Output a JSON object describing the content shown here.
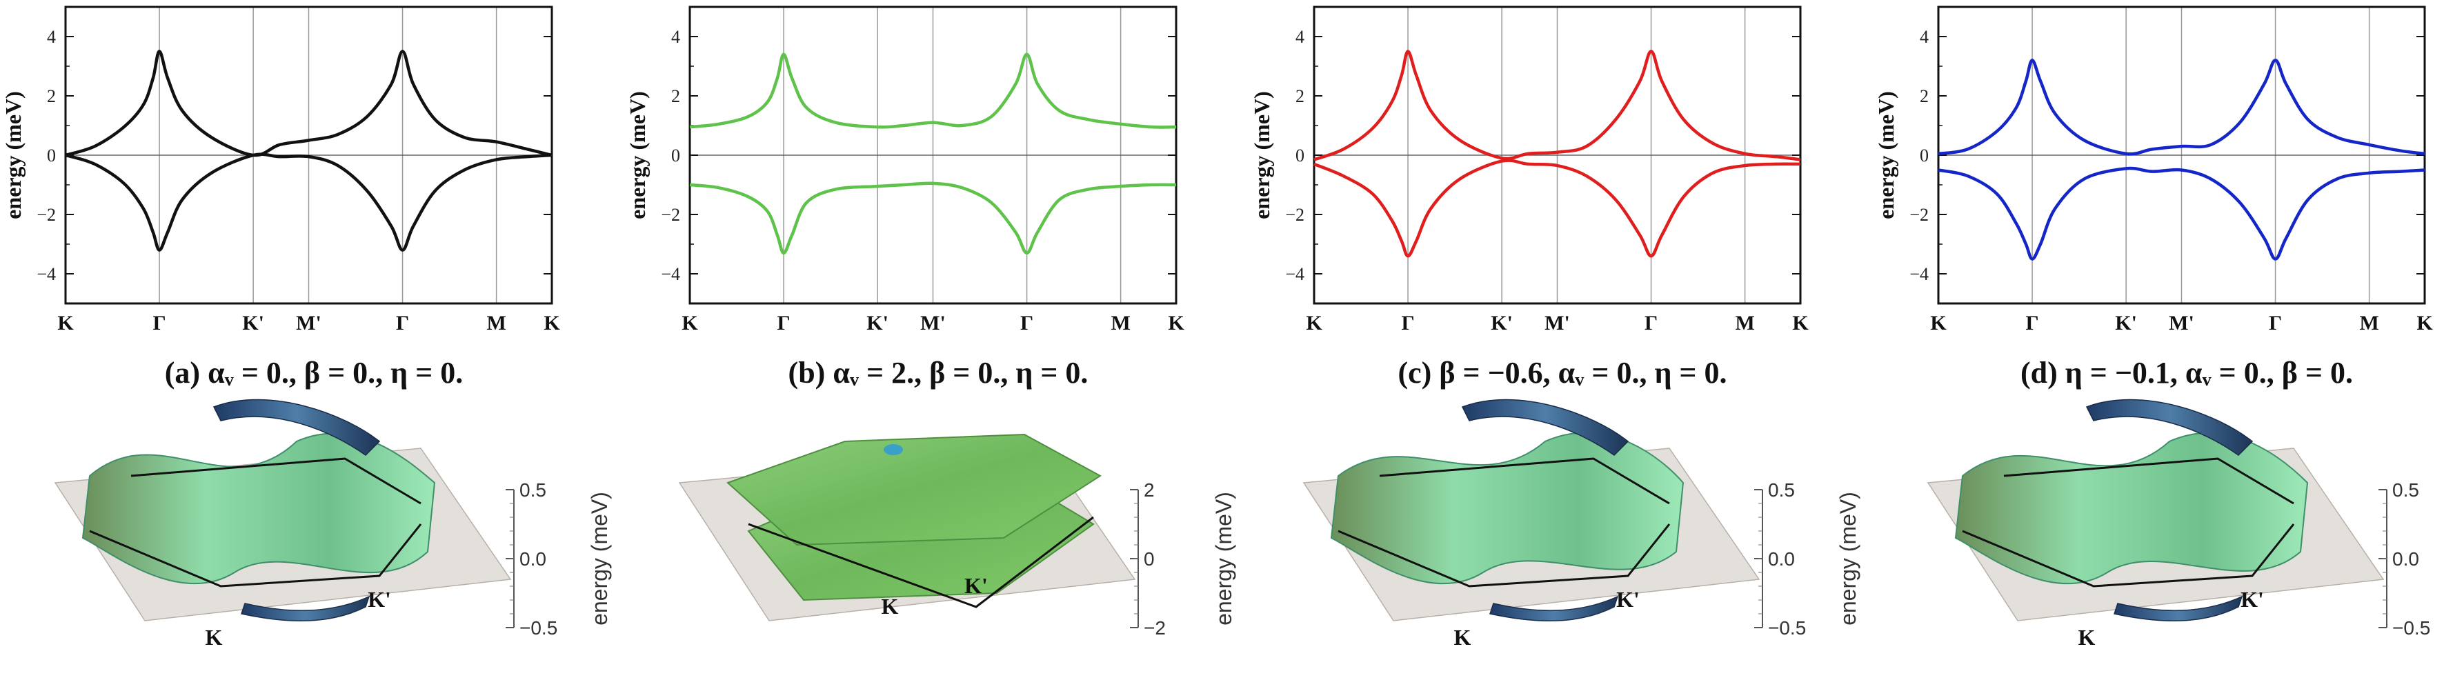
{
  "figure": {
    "ylabel": "energy (meV)",
    "surface_zlabel": "energy (meV)",
    "panels": [
      {
        "caption": "(a) αᵥ = 0., β = 0., η = 0.",
        "color": "#111111",
        "surface_ticks": [
          "0.5",
          "0.0",
          "−0.5"
        ],
        "k_label": "K",
        "kp_label": "K'"
      },
      {
        "caption": "(b) αᵥ = 2., β = 0., η = 0.",
        "color": "#5fc24a",
        "surface_ticks": [
          "2",
          "0",
          "−2"
        ],
        "k_label": "K",
        "kp_label": "K'"
      },
      {
        "caption": "(c) β = −0.6, αᵥ = 0., η = 0.",
        "color": "#e01e1e",
        "surface_ticks": [
          "0.5",
          "0.0",
          "−0.5"
        ],
        "k_label": "K",
        "kp_label": "K'"
      },
      {
        "caption": "(d) η = −0.1, αᵥ = 0., β = 0.",
        "color": "#1526c9",
        "surface_ticks": [
          "0.5",
          "0.0",
          "−0.5"
        ],
        "k_label": "K",
        "kp_label": "K'"
      }
    ]
  },
  "chart_data": [
    {
      "type": "line",
      "title": "(a) αᵥ = 0., β = 0., η = 0.",
      "xlabel": "",
      "ylabel": "energy (meV)",
      "ylim": [
        -5,
        5
      ],
      "yticks": [
        -4,
        -2,
        0,
        2,
        4
      ],
      "xticks": [
        {
          "label": "K",
          "x": 0
        },
        {
          "label": "Γ",
          "x": 0.193
        },
        {
          "label": "K'",
          "x": 0.386
        },
        {
          "label": "M'",
          "x": 0.5
        },
        {
          "label": "Γ",
          "x": 0.693
        },
        {
          "label": "M",
          "x": 0.886
        },
        {
          "label": "K",
          "x": 1
        }
      ],
      "series": [
        {
          "name": "upper",
          "points": [
            [
              0,
              0
            ],
            [
              0.06,
              0.3
            ],
            [
              0.12,
              0.95
            ],
            [
              0.16,
              1.7
            ],
            [
              0.18,
              2.6
            ],
            [
              0.193,
              3.5
            ],
            [
              0.21,
              2.6
            ],
            [
              0.24,
              1.5
            ],
            [
              0.3,
              0.6
            ],
            [
              0.386,
              0
            ],
            [
              0.44,
              0.35
            ],
            [
              0.5,
              0.5
            ],
            [
              0.56,
              0.7
            ],
            [
              0.62,
              1.3
            ],
            [
              0.67,
              2.4
            ],
            [
              0.693,
              3.5
            ],
            [
              0.715,
              2.4
            ],
            [
              0.76,
              1.2
            ],
            [
              0.82,
              0.6
            ],
            [
              0.886,
              0.45
            ],
            [
              0.95,
              0.2
            ],
            [
              1,
              0
            ]
          ]
        },
        {
          "name": "lower",
          "points": [
            [
              0,
              0
            ],
            [
              0.06,
              -0.3
            ],
            [
              0.12,
              -0.95
            ],
            [
              0.16,
              -1.8
            ],
            [
              0.18,
              -2.6
            ],
            [
              0.193,
              -3.2
            ],
            [
              0.21,
              -2.6
            ],
            [
              0.24,
              -1.5
            ],
            [
              0.3,
              -0.6
            ],
            [
              0.386,
              0
            ],
            [
              0.44,
              -0.05
            ],
            [
              0.5,
              -0.05
            ],
            [
              0.56,
              -0.35
            ],
            [
              0.62,
              -1.2
            ],
            [
              0.67,
              -2.4
            ],
            [
              0.693,
              -3.2
            ],
            [
              0.715,
              -2.4
            ],
            [
              0.76,
              -1.2
            ],
            [
              0.82,
              -0.5
            ],
            [
              0.886,
              -0.15
            ],
            [
              0.95,
              -0.05
            ],
            [
              1,
              0
            ]
          ]
        }
      ]
    },
    {
      "type": "line",
      "title": "(b) αᵥ = 2., β = 0., η = 0.",
      "xlabel": "",
      "ylabel": "energy (meV)",
      "ylim": [
        -5,
        5
      ],
      "yticks": [
        -4,
        -2,
        0,
        2,
        4
      ],
      "xticks": [
        {
          "label": "K",
          "x": 0
        },
        {
          "label": "Γ",
          "x": 0.193
        },
        {
          "label": "K'",
          "x": 0.386
        },
        {
          "label": "M'",
          "x": 0.5
        },
        {
          "label": "Γ",
          "x": 0.693
        },
        {
          "label": "M",
          "x": 0.886
        },
        {
          "label": "K",
          "x": 1
        }
      ],
      "series": [
        {
          "name": "upper",
          "points": [
            [
              0,
              0.95
            ],
            [
              0.06,
              1.05
            ],
            [
              0.12,
              1.3
            ],
            [
              0.16,
              1.8
            ],
            [
              0.18,
              2.6
            ],
            [
              0.193,
              3.4
            ],
            [
              0.21,
              2.6
            ],
            [
              0.24,
              1.6
            ],
            [
              0.3,
              1.1
            ],
            [
              0.386,
              0.95
            ],
            [
              0.44,
              1.0
            ],
            [
              0.5,
              1.1
            ],
            [
              0.56,
              1.0
            ],
            [
              0.62,
              1.3
            ],
            [
              0.67,
              2.4
            ],
            [
              0.693,
              3.4
            ],
            [
              0.715,
              2.4
            ],
            [
              0.76,
              1.5
            ],
            [
              0.82,
              1.2
            ],
            [
              0.886,
              1.05
            ],
            [
              0.95,
              0.95
            ],
            [
              1,
              0.95
            ]
          ]
        },
        {
          "name": "lower",
          "points": [
            [
              0,
              -1.0
            ],
            [
              0.06,
              -1.1
            ],
            [
              0.12,
              -1.4
            ],
            [
              0.16,
              -1.9
            ],
            [
              0.18,
              -2.7
            ],
            [
              0.193,
              -3.3
            ],
            [
              0.21,
              -2.7
            ],
            [
              0.24,
              -1.6
            ],
            [
              0.3,
              -1.15
            ],
            [
              0.386,
              -1.05
            ],
            [
              0.44,
              -1.0
            ],
            [
              0.5,
              -0.95
            ],
            [
              0.56,
              -1.1
            ],
            [
              0.62,
              -1.6
            ],
            [
              0.67,
              -2.6
            ],
            [
              0.693,
              -3.3
            ],
            [
              0.715,
              -2.6
            ],
            [
              0.76,
              -1.5
            ],
            [
              0.82,
              -1.15
            ],
            [
              0.886,
              -1.05
            ],
            [
              0.95,
              -1.0
            ],
            [
              1,
              -1.0
            ]
          ]
        }
      ]
    },
    {
      "type": "line",
      "title": "(c) β = −0.6, αᵥ = 0., η = 0.",
      "xlabel": "",
      "ylabel": "energy (meV)",
      "ylim": [
        -5,
        5
      ],
      "yticks": [
        -4,
        -2,
        0,
        2,
        4
      ],
      "xticks": [
        {
          "label": "K",
          "x": 0
        },
        {
          "label": "Γ",
          "x": 0.193
        },
        {
          "label": "K'",
          "x": 0.386
        },
        {
          "label": "M'",
          "x": 0.5
        },
        {
          "label": "Γ",
          "x": 0.693
        },
        {
          "label": "M",
          "x": 0.886
        },
        {
          "label": "K",
          "x": 1
        }
      ],
      "series": [
        {
          "name": "upper",
          "points": [
            [
              0,
              -0.15
            ],
            [
              0.06,
              0.2
            ],
            [
              0.12,
              0.9
            ],
            [
              0.16,
              1.8
            ],
            [
              0.18,
              2.7
            ],
            [
              0.193,
              3.5
            ],
            [
              0.21,
              2.7
            ],
            [
              0.24,
              1.5
            ],
            [
              0.3,
              0.5
            ],
            [
              0.386,
              -0.1
            ],
            [
              0.44,
              0.05
            ],
            [
              0.5,
              0.1
            ],
            [
              0.56,
              0.3
            ],
            [
              0.62,
              1.2
            ],
            [
              0.67,
              2.5
            ],
            [
              0.693,
              3.5
            ],
            [
              0.715,
              2.5
            ],
            [
              0.76,
              1.2
            ],
            [
              0.82,
              0.4
            ],
            [
              0.886,
              0.05
            ],
            [
              0.95,
              -0.05
            ],
            [
              1,
              -0.15
            ]
          ]
        },
        {
          "name": "lower",
          "points": [
            [
              0,
              -0.3
            ],
            [
              0.06,
              -0.7
            ],
            [
              0.12,
              -1.3
            ],
            [
              0.16,
              -2.2
            ],
            [
              0.18,
              -2.9
            ],
            [
              0.193,
              -3.4
            ],
            [
              0.21,
              -2.9
            ],
            [
              0.24,
              -1.8
            ],
            [
              0.3,
              -0.8
            ],
            [
              0.386,
              -0.2
            ],
            [
              0.44,
              -0.3
            ],
            [
              0.5,
              -0.35
            ],
            [
              0.56,
              -0.7
            ],
            [
              0.62,
              -1.5
            ],
            [
              0.67,
              -2.7
            ],
            [
              0.693,
              -3.4
            ],
            [
              0.715,
              -2.7
            ],
            [
              0.76,
              -1.4
            ],
            [
              0.82,
              -0.6
            ],
            [
              0.886,
              -0.35
            ],
            [
              0.95,
              -0.3
            ],
            [
              1,
              -0.3
            ]
          ]
        }
      ]
    },
    {
      "type": "line",
      "title": "(d) η = −0.1, αᵥ = 0., β = 0.",
      "xlabel": "",
      "ylabel": "energy (meV)",
      "ylim": [
        -5,
        5
      ],
      "yticks": [
        -4,
        -2,
        0,
        2,
        4
      ],
      "xticks": [
        {
          "label": "K",
          "x": 0
        },
        {
          "label": "Γ",
          "x": 0.193
        },
        {
          "label": "K'",
          "x": 0.386
        },
        {
          "label": "M'",
          "x": 0.5
        },
        {
          "label": "Γ",
          "x": 0.693
        },
        {
          "label": "M",
          "x": 0.886
        },
        {
          "label": "K",
          "x": 1
        }
      ],
      "series": [
        {
          "name": "upper",
          "points": [
            [
              0,
              0.05
            ],
            [
              0.06,
              0.2
            ],
            [
              0.12,
              0.8
            ],
            [
              0.16,
              1.6
            ],
            [
              0.18,
              2.5
            ],
            [
              0.193,
              3.2
            ],
            [
              0.21,
              2.5
            ],
            [
              0.24,
              1.4
            ],
            [
              0.3,
              0.5
            ],
            [
              0.386,
              0.05
            ],
            [
              0.44,
              0.2
            ],
            [
              0.5,
              0.3
            ],
            [
              0.56,
              0.35
            ],
            [
              0.62,
              1.1
            ],
            [
              0.67,
              2.4
            ],
            [
              0.693,
              3.2
            ],
            [
              0.715,
              2.4
            ],
            [
              0.76,
              1.2
            ],
            [
              0.82,
              0.6
            ],
            [
              0.886,
              0.35
            ],
            [
              0.95,
              0.15
            ],
            [
              1,
              0.05
            ]
          ]
        },
        {
          "name": "lower",
          "points": [
            [
              0,
              -0.5
            ],
            [
              0.06,
              -0.7
            ],
            [
              0.12,
              -1.3
            ],
            [
              0.16,
              -2.3
            ],
            [
              0.18,
              -3.0
            ],
            [
              0.193,
              -3.5
            ],
            [
              0.21,
              -3.0
            ],
            [
              0.24,
              -1.8
            ],
            [
              0.3,
              -0.8
            ],
            [
              0.386,
              -0.45
            ],
            [
              0.44,
              -0.55
            ],
            [
              0.5,
              -0.5
            ],
            [
              0.56,
              -0.8
            ],
            [
              0.62,
              -1.6
            ],
            [
              0.67,
              -2.8
            ],
            [
              0.693,
              -3.5
            ],
            [
              0.715,
              -2.8
            ],
            [
              0.76,
              -1.5
            ],
            [
              0.82,
              -0.8
            ],
            [
              0.886,
              -0.6
            ],
            [
              0.95,
              -0.55
            ],
            [
              1,
              -0.5
            ]
          ]
        }
      ]
    }
  ]
}
